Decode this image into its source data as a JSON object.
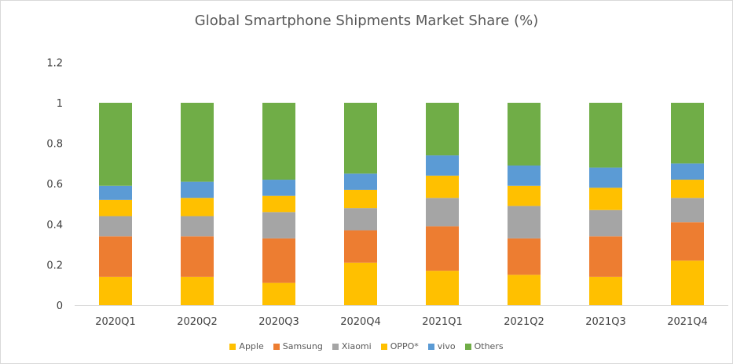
{
  "chart_data": {
    "type": "bar",
    "stacked": true,
    "title": "Global Smartphone Shipments Market Share (%)",
    "xlabel": "",
    "ylabel": "",
    "ylim": [
      0,
      1.2
    ],
    "yticks": [
      "0",
      "0.2",
      "0.4",
      "0.6",
      "0.8",
      "1",
      "1.2"
    ],
    "grid": false,
    "legend": "bottom",
    "categories": [
      "2020Q1",
      "2020Q2",
      "2020Q3",
      "2020Q4",
      "2021Q1",
      "2021Q2",
      "2021Q3",
      "2021Q4"
    ],
    "series": [
      {
        "name": "Apple",
        "color": "#ffc000",
        "values": [
          0.14,
          0.14,
          0.11,
          0.21,
          0.17,
          0.15,
          0.14,
          0.22
        ]
      },
      {
        "name": "Samsung",
        "color": "#ed7d31",
        "values": [
          0.2,
          0.2,
          0.22,
          0.16,
          0.22,
          0.18,
          0.2,
          0.19
        ]
      },
      {
        "name": "Xiaomi",
        "color": "#a5a5a5",
        "values": [
          0.1,
          0.1,
          0.13,
          0.11,
          0.14,
          0.16,
          0.13,
          0.12
        ]
      },
      {
        "name": "OPPO*",
        "color": "#ffc000",
        "values": [
          0.08,
          0.09,
          0.08,
          0.09,
          0.11,
          0.1,
          0.11,
          0.09
        ]
      },
      {
        "name": "vivo",
        "color": "#5b9bd5",
        "values": [
          0.07,
          0.08,
          0.08,
          0.08,
          0.1,
          0.1,
          0.1,
          0.08
        ]
      },
      {
        "name": "Others",
        "color": "#70ad47",
        "values": [
          0.41,
          0.39,
          0.38,
          0.35,
          0.26,
          0.31,
          0.32,
          0.3
        ]
      }
    ]
  }
}
